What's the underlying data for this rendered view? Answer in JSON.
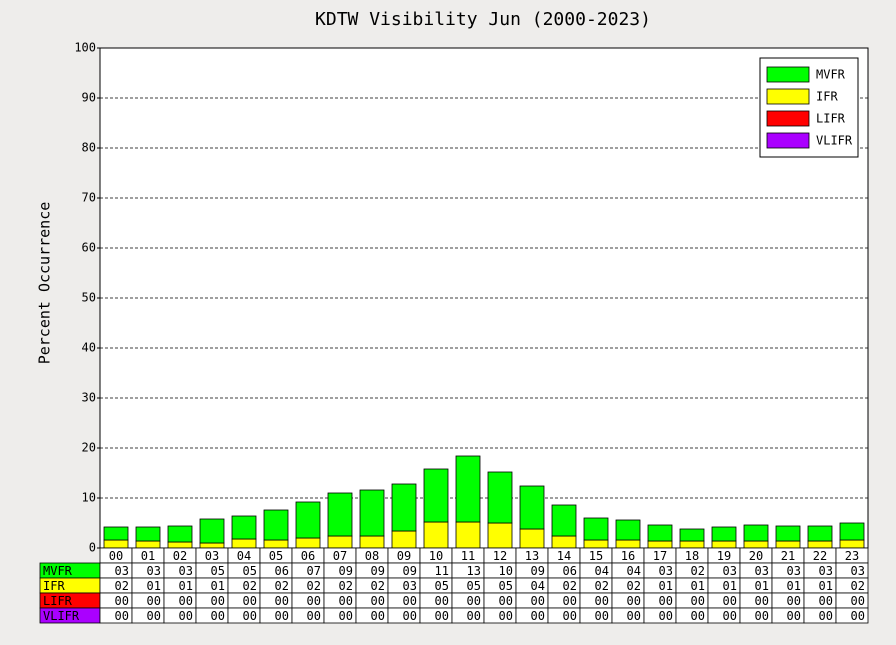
{
  "chart_data": {
    "type": "bar",
    "stacked": true,
    "title": "KDTW Visibility Jun (2000-2023)",
    "y_label": "Percent Occurrence",
    "categories": [
      "00",
      "01",
      "02",
      "03",
      "04",
      "05",
      "06",
      "07",
      "08",
      "09",
      "10",
      "11",
      "12",
      "13",
      "14",
      "15",
      "16",
      "17",
      "18",
      "19",
      "20",
      "21",
      "22",
      "23"
    ],
    "ylim": [
      0,
      100
    ],
    "yticks": [
      0,
      10,
      20,
      30,
      40,
      50,
      60,
      70,
      80,
      90,
      100
    ],
    "grid": true,
    "legend": "upper right",
    "series": [
      {
        "name": "MVFR",
        "color": "#00ff00",
        "values": [
          2.6,
          2.8,
          3.2,
          4.8,
          4.6,
          6.0,
          7.2,
          8.6,
          9.2,
          9.4,
          10.6,
          13.2,
          10.2,
          8.6,
          6.2,
          4.4,
          4.0,
          3.2,
          2.4,
          2.8,
          3.2,
          3.0,
          3.0,
          3.4
        ],
        "value_labels": [
          "03",
          "03",
          "03",
          "05",
          "05",
          "06",
          "07",
          "09",
          "09",
          "09",
          "11",
          "13",
          "10",
          "09",
          "06",
          "04",
          "04",
          "03",
          "02",
          "03",
          "03",
          "03",
          "03",
          "03"
        ]
      },
      {
        "name": "IFR",
        "color": "#ffff00",
        "values": [
          1.6,
          1.4,
          1.2,
          1.0,
          1.8,
          1.6,
          2.0,
          2.4,
          2.4,
          3.4,
          5.2,
          5.2,
          5.0,
          3.8,
          2.4,
          1.6,
          1.6,
          1.4,
          1.4,
          1.4,
          1.4,
          1.4,
          1.4,
          1.6
        ],
        "value_labels": [
          "02",
          "01",
          "01",
          "01",
          "02",
          "02",
          "02",
          "02",
          "02",
          "03",
          "05",
          "05",
          "05",
          "04",
          "02",
          "02",
          "02",
          "01",
          "01",
          "01",
          "01",
          "01",
          "01",
          "02"
        ]
      },
      {
        "name": "LIFR",
        "color": "#ff0000",
        "values": [
          0,
          0,
          0,
          0,
          0,
          0,
          0,
          0,
          0,
          0,
          0,
          0,
          0,
          0,
          0,
          0,
          0,
          0,
          0,
          0,
          0,
          0,
          0,
          0
        ],
        "value_labels": [
          "00",
          "00",
          "00",
          "00",
          "00",
          "00",
          "00",
          "00",
          "00",
          "00",
          "00",
          "00",
          "00",
          "00",
          "00",
          "00",
          "00",
          "00",
          "00",
          "00",
          "00",
          "00",
          "00",
          "00"
        ]
      },
      {
        "name": "VLIFR",
        "color": "#aa00ff",
        "values": [
          0,
          0,
          0,
          0,
          0,
          0,
          0,
          0,
          0,
          0,
          0,
          0,
          0,
          0,
          0,
          0,
          0,
          0,
          0,
          0,
          0,
          0,
          0,
          0
        ],
        "value_labels": [
          "00",
          "00",
          "00",
          "00",
          "00",
          "00",
          "00",
          "00",
          "00",
          "00",
          "00",
          "00",
          "00",
          "00",
          "00",
          "00",
          "00",
          "00",
          "00",
          "00",
          "00",
          "00",
          "00",
          "00"
        ]
      }
    ]
  }
}
